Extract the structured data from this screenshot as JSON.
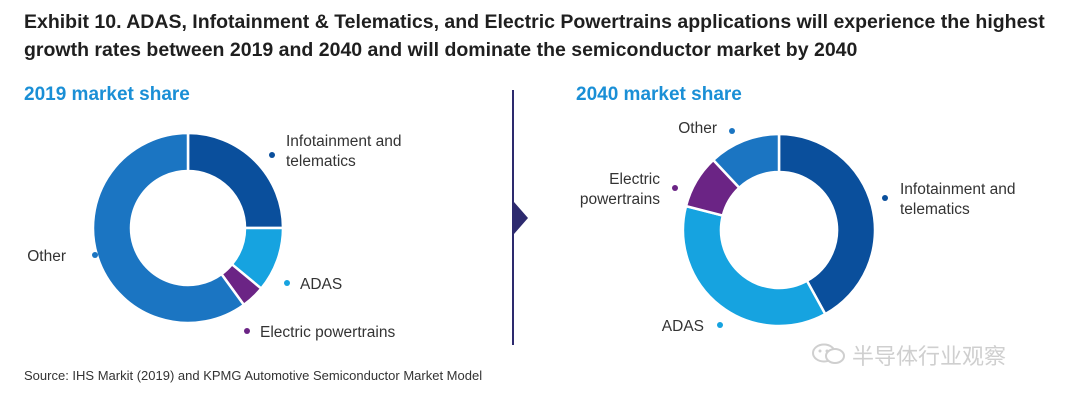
{
  "title": "Exhibit 10. ADAS, Infotainment & Telematics, and Electric Powertrains applications will experience the highest growth rates between 2019 and 2040 and will dominate the semiconductor market by 2040",
  "source": "Source: IHS Markit (2019) and KPMG Automotive Semiconductor Market Model",
  "watermark": "半导体行业观察",
  "colors": {
    "infotainment": "#0a4f9c",
    "adas": "#16a3e0",
    "electric": "#6b2485",
    "other": "#1b75c2",
    "subtitle": "#1a8fd6",
    "divider": "#2d2a6e"
  },
  "chart_data": [
    {
      "type": "pie",
      "style": "donut",
      "title": "2019 market share",
      "segments": [
        {
          "label_lines": [
            "Infotainment and",
            "telematics"
          ],
          "key": "infotainment",
          "value": 25
        },
        {
          "label_lines": [
            "ADAS"
          ],
          "key": "adas",
          "value": 11
        },
        {
          "label_lines": [
            "Electric powertrains"
          ],
          "key": "electric",
          "value": 4
        },
        {
          "label_lines": [
            "Other"
          ],
          "key": "other",
          "value": 60
        }
      ]
    },
    {
      "type": "pie",
      "style": "donut",
      "title": "2040 market share",
      "segments": [
        {
          "label_lines": [
            "Infotainment and",
            "telematics"
          ],
          "key": "infotainment",
          "value": 42
        },
        {
          "label_lines": [
            "ADAS"
          ],
          "key": "adas",
          "value": 37
        },
        {
          "label_lines": [
            "Electric",
            "powertrains"
          ],
          "key": "electric",
          "value": 9
        },
        {
          "label_lines": [
            "Other"
          ],
          "key": "other",
          "value": 12
        }
      ]
    }
  ]
}
